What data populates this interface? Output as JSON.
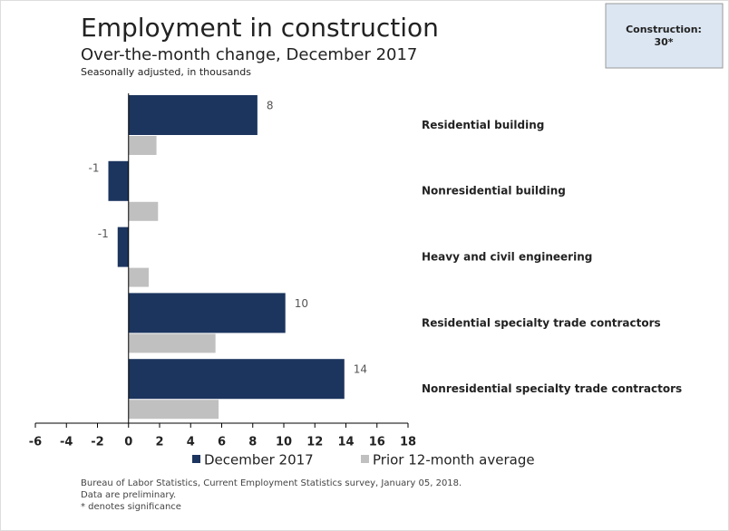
{
  "chart_data": {
    "type": "bar",
    "orientation": "horizontal",
    "title": "Employment in construction",
    "subtitle": "Over-the-month change, December 2017",
    "units": "Seasonally adjusted, in thousands",
    "annotation_box": [
      "Construction:",
      "30*"
    ],
    "categories": [
      "Residential building",
      "Nonresidential building",
      "Heavy and civil engineering",
      "Residential specialty trade contractors",
      "Nonresidential specialty trade contractors"
    ],
    "series": [
      {
        "name": "December 2017",
        "color": "#1c355e",
        "values": [
          8.3,
          -1.3,
          -0.7,
          10.1,
          13.9
        ],
        "value_labels": [
          "8",
          "-1",
          "-1",
          "10",
          "14"
        ]
      },
      {
        "name": "Prior 12-month average",
        "color": "#c0c0c0",
        "values": [
          1.8,
          1.9,
          1.3,
          5.6,
          5.8
        ]
      }
    ],
    "xlim": [
      -6,
      18
    ],
    "xticks": [
      -6,
      -4,
      -2,
      0,
      2,
      4,
      6,
      8,
      10,
      12,
      14,
      16,
      18
    ],
    "footnotes": [
      "Bureau of Labor Statistics, Current Employment Statistics survey, January 05, 2018.",
      "Data are preliminary.",
      "* denotes significance"
    ]
  }
}
